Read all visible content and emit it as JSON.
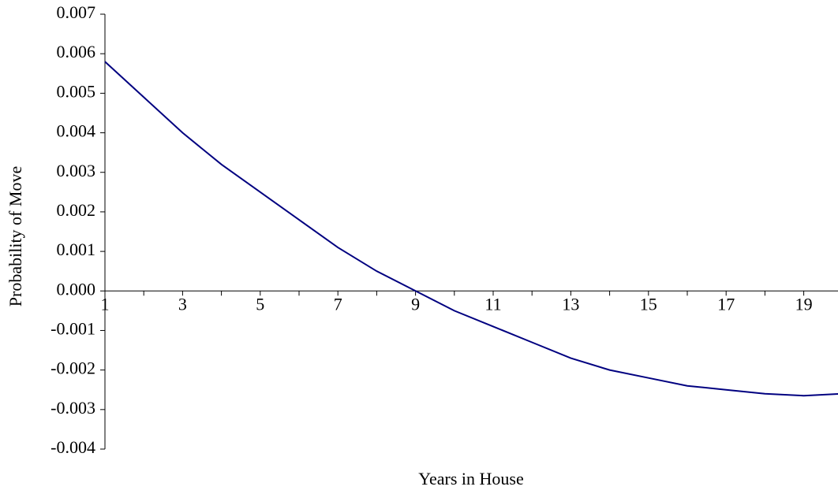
{
  "chart_data": {
    "type": "line",
    "x_label": "Years in House",
    "y_label": "Probability of Move",
    "categories": [
      "1",
      null,
      "3",
      null,
      "5",
      null,
      "7",
      null,
      "9",
      null,
      "11",
      null,
      "13",
      null,
      "15",
      null,
      "17",
      null,
      "19",
      null
    ],
    "series": [
      {
        "name": "Probability of Move",
        "color": "#000080",
        "values": [
          0.0058,
          0.0049,
          0.004,
          0.0032,
          0.0025,
          0.0018,
          0.0011,
          0.0005,
          0.0,
          -0.0005,
          -0.0009,
          -0.0013,
          -0.0017,
          -0.002,
          -0.0022,
          -0.0024,
          -0.0025,
          -0.0026,
          -0.00265,
          -0.0026
        ]
      }
    ],
    "ylim": [
      -0.004,
      0.007
    ],
    "yticks": [
      -0.004,
      -0.003,
      -0.002,
      -0.001,
      {
        "value": 0,
        "label": "0.000"
      },
      0.001,
      0.002,
      0.003,
      0.004,
      0.005,
      0.006,
      0.007
    ],
    "grid": false
  }
}
